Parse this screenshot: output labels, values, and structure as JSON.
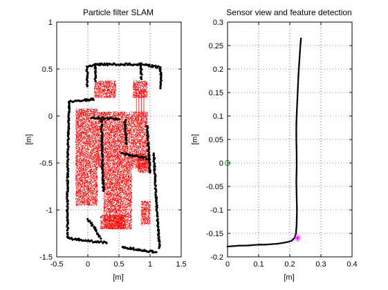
{
  "chart_data": [
    {
      "type": "scatter",
      "title": "Particle filter SLAM",
      "xlabel": "[m]",
      "ylabel": "[m]",
      "xlim": [
        -0.5,
        1.5
      ],
      "ylim": [
        -1.5,
        1
      ],
      "xticks": [
        "-0.5",
        "0",
        "0.5",
        "1",
        "1.5"
      ],
      "yticks": [
        "1",
        "0.5",
        "0",
        "-0.5",
        "-1",
        "-1.5"
      ],
      "grid": true,
      "colors": {
        "map": "#000000",
        "particles": "#ff0000"
      },
      "map_walls": [
        [
          [
            -0.01,
            0.52
          ],
          [
            0.12,
            0.55
          ],
          [
            0.4,
            0.55
          ],
          [
            0.65,
            0.55
          ],
          [
            0.85,
            0.55
          ],
          [
            1.16,
            0.52
          ]
        ],
        [
          [
            -0.01,
            0.52
          ],
          [
            -0.01,
            0.32
          ]
        ],
        [
          [
            1.16,
            0.52
          ],
          [
            1.18,
            0.42
          ],
          [
            1.17,
            0.3
          ]
        ],
        [
          [
            0.85,
            0.55
          ],
          [
            0.86,
            0.4
          ]
        ],
        [
          [
            0.12,
            0.55
          ],
          [
            0.12,
            0.38
          ]
        ],
        [
          [
            -0.3,
            0.15
          ],
          [
            -0.05,
            0.17
          ],
          [
            0.1,
            0.18
          ]
        ],
        [
          [
            -0.3,
            0.15
          ],
          [
            -0.32,
            -0.4
          ],
          [
            -0.33,
            -1.0
          ],
          [
            -0.32,
            -1.3
          ]
        ],
        [
          [
            -0.32,
            -1.3
          ],
          [
            0.0,
            -1.33
          ],
          [
            0.3,
            -1.35
          ]
        ],
        [
          [
            0.55,
            -1.4
          ],
          [
            0.8,
            -1.42
          ],
          [
            1.1,
            -1.45
          ]
        ],
        [
          [
            0.05,
            -0.02
          ],
          [
            0.5,
            -0.03
          ]
        ],
        [
          [
            0.22,
            -0.05
          ],
          [
            0.23,
            -0.4
          ],
          [
            0.25,
            -0.8
          ]
        ],
        [
          [
            0.6,
            -0.05
          ],
          [
            0.62,
            -0.3
          ]
        ],
        [
          [
            0.55,
            -0.4
          ],
          [
            0.75,
            -0.42
          ],
          [
            0.95,
            -0.45
          ]
        ],
        [
          [
            0.95,
            -0.1
          ],
          [
            1.0,
            -0.6
          ]
        ],
        [
          [
            1.06,
            -0.4
          ],
          [
            1.1,
            -0.9
          ],
          [
            1.15,
            -1.4
          ]
        ],
        [
          [
            0.0,
            -1.1
          ],
          [
            0.12,
            -1.2
          ],
          [
            0.2,
            -1.3
          ]
        ]
      ],
      "particle_regions": [
        {
          "x": [
            0.1,
            0.45
          ],
          "y": [
            0.2,
            0.38
          ]
        },
        {
          "x": [
            0.72,
            0.95
          ],
          "y": [
            0.2,
            0.38
          ]
        },
        {
          "x": [
            -0.2,
            0.15
          ],
          "y": [
            -0.95,
            0.08
          ]
        },
        {
          "x": [
            0.15,
            0.95
          ],
          "y": [
            -0.55,
            0.05
          ]
        },
        {
          "x": [
            0.25,
            0.7
          ],
          "y": [
            -1.2,
            -0.55
          ]
        },
        {
          "x": [
            0.2,
            0.6
          ],
          "y": [
            -1.2,
            -1.05
          ]
        },
        {
          "x": [
            0.8,
            1.0
          ],
          "y": [
            -0.6,
            -0.4
          ]
        },
        {
          "x": [
            0.85,
            1.0
          ],
          "y": [
            -1.15,
            -0.9
          ]
        }
      ],
      "particle_streaks_x": [
        0.78,
        0.82,
        0.86,
        0.9
      ],
      "particle_streak_y": [
        -0.05,
        0.28
      ]
    },
    {
      "type": "scatter",
      "title": "Sensor view and feature detection",
      "xlabel": "[m]",
      "ylabel": "[m]",
      "xlim": [
        0,
        0.4
      ],
      "ylim": [
        -0.2,
        0.3
      ],
      "xticks": [
        "0",
        "0.1",
        "0.2",
        "0.3",
        "0.4"
      ],
      "yticks": [
        "0.3",
        "0.25",
        "0.2",
        "0.15",
        "0.1",
        "0.05",
        "0",
        "-0.05",
        "-0.1",
        "-0.15",
        "-0.2"
      ],
      "grid": true,
      "scan_points": [
        [
          0.0,
          -0.178
        ],
        [
          0.02,
          -0.177
        ],
        [
          0.04,
          -0.176
        ],
        [
          0.06,
          -0.176
        ],
        [
          0.08,
          -0.175
        ],
        [
          0.1,
          -0.174
        ],
        [
          0.12,
          -0.174
        ],
        [
          0.14,
          -0.173
        ],
        [
          0.16,
          -0.172
        ],
        [
          0.18,
          -0.17
        ],
        [
          0.195,
          -0.168
        ],
        [
          0.205,
          -0.166
        ],
        [
          0.215,
          -0.16
        ],
        [
          0.22,
          -0.15
        ],
        [
          0.222,
          -0.13
        ],
        [
          0.223,
          -0.1
        ],
        [
          0.222,
          -0.07
        ],
        [
          0.221,
          -0.04
        ],
        [
          0.222,
          -0.01
        ],
        [
          0.222,
          0.02
        ],
        [
          0.221,
          0.05
        ],
        [
          0.221,
          0.08
        ],
        [
          0.222,
          0.1
        ],
        [
          0.224,
          0.13
        ],
        [
          0.226,
          0.16
        ],
        [
          0.228,
          0.19
        ],
        [
          0.23,
          0.21
        ],
        [
          0.232,
          0.23
        ],
        [
          0.234,
          0.25
        ],
        [
          0.236,
          0.265
        ]
      ],
      "sensor_origin": [
        0.0,
        0.0
      ],
      "detected_feature": [
        0.225,
        -0.16
      ],
      "colors": {
        "scan": "#000000",
        "origin": "#00aa00",
        "feature": "#ff00ff"
      }
    }
  ]
}
